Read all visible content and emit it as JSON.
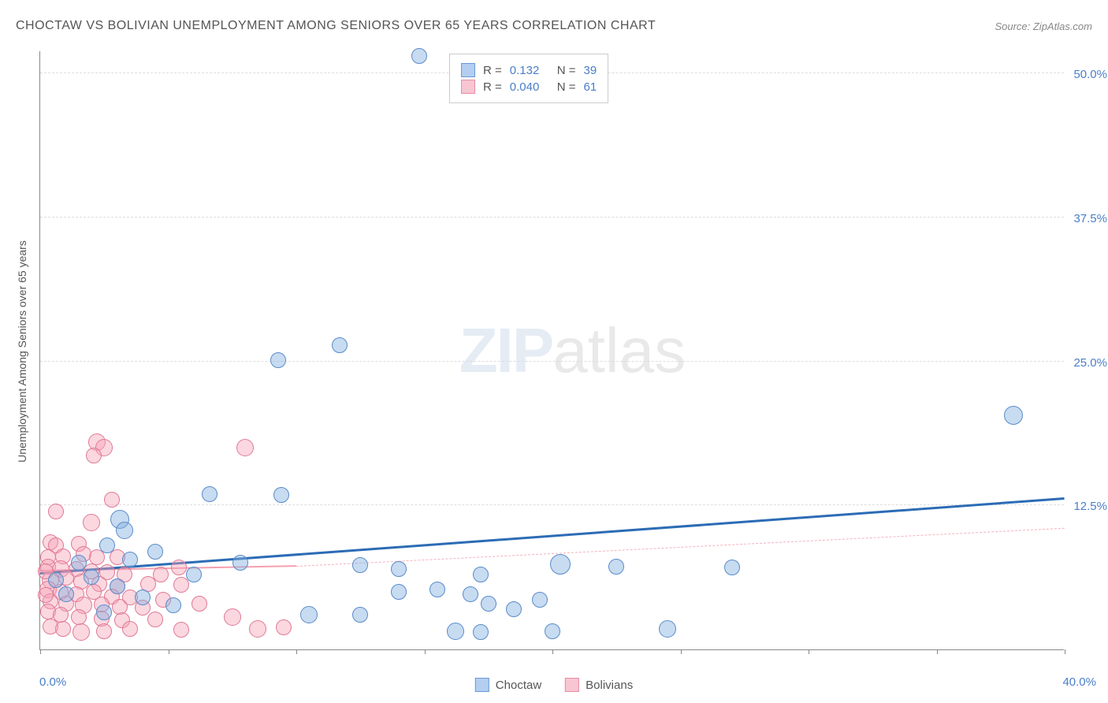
{
  "header": {
    "title": "CHOCTAW VS BOLIVIAN UNEMPLOYMENT AMONG SENIORS OVER 65 YEARS CORRELATION CHART",
    "source_prefix": "Source: ",
    "source": "ZipAtlas.com"
  },
  "watermark": {
    "part1": "ZIP",
    "part2": "atlas"
  },
  "axes": {
    "y_label": "Unemployment Among Seniors over 65 years",
    "x_min": 0.0,
    "x_max": 40.0,
    "y_min": 0.0,
    "y_max": 52.0,
    "x_tick_start": "0.0%",
    "x_tick_end": "40.0%",
    "y_ticks": [
      {
        "v": 12.5,
        "label": "12.5%"
      },
      {
        "v": 25.0,
        "label": "25.0%"
      },
      {
        "v": 37.5,
        "label": "37.5%"
      },
      {
        "v": 50.0,
        "label": "50.0%"
      }
    ],
    "x_tick_positions": [
      0,
      5,
      10,
      15,
      20,
      25,
      30,
      35,
      40
    ],
    "grid_color": "#dddddd",
    "tick_color": "#4a7ec9",
    "axis_line_color": "#888888"
  },
  "legend": {
    "rows": [
      {
        "swatch_fill": "#b3cef0",
        "swatch_border": "#6a9bd8",
        "r_label": "R =",
        "r_val": "0.132",
        "n_label": "N =",
        "n_val": "39"
      },
      {
        "swatch_fill": "#f7c6d2",
        "swatch_border": "#e88ca4",
        "r_label": "R =",
        "r_val": "0.040",
        "n_label": "N =",
        "n_val": "61"
      }
    ],
    "r_color": "#4a7ec9"
  },
  "bottom_legend": {
    "items": [
      {
        "swatch_fill": "#b3cef0",
        "swatch_border": "#6a9bd8",
        "label": "Choctaw"
      },
      {
        "swatch_fill": "#f7c6d2",
        "swatch_border": "#e88ca4",
        "label": "Bolivians"
      }
    ]
  },
  "series": {
    "choctaw": {
      "fill": "rgba(130,175,225,0.45)",
      "stroke": "#5a8cc9",
      "radius_min": 8,
      "radius_max": 14,
      "trend": {
        "x1": 0,
        "y1": 6.5,
        "x2": 40,
        "y2": 13.0,
        "color": "#2c6cb5"
      },
      "points": [
        {
          "x": 14.8,
          "y": 51.5,
          "r": 10
        },
        {
          "x": 38.0,
          "y": 20.3,
          "r": 12
        },
        {
          "x": 11.7,
          "y": 26.4,
          "r": 10
        },
        {
          "x": 9.3,
          "y": 25.1,
          "r": 10
        },
        {
          "x": 6.6,
          "y": 13.5,
          "r": 10
        },
        {
          "x": 9.4,
          "y": 13.4,
          "r": 10
        },
        {
          "x": 3.1,
          "y": 11.3,
          "r": 12
        },
        {
          "x": 3.3,
          "y": 10.3,
          "r": 11
        },
        {
          "x": 2.6,
          "y": 9.0,
          "r": 10
        },
        {
          "x": 3.5,
          "y": 7.8,
          "r": 10
        },
        {
          "x": 1.5,
          "y": 7.5,
          "r": 10
        },
        {
          "x": 7.8,
          "y": 7.5,
          "r": 10
        },
        {
          "x": 20.3,
          "y": 7.4,
          "r": 13
        },
        {
          "x": 12.5,
          "y": 7.3,
          "r": 10
        },
        {
          "x": 14.0,
          "y": 7.0,
          "r": 10
        },
        {
          "x": 22.5,
          "y": 7.2,
          "r": 10
        },
        {
          "x": 27.0,
          "y": 7.1,
          "r": 10
        },
        {
          "x": 17.2,
          "y": 6.5,
          "r": 10
        },
        {
          "x": 2.0,
          "y": 6.3,
          "r": 10
        },
        {
          "x": 3.0,
          "y": 5.5,
          "r": 10
        },
        {
          "x": 14.0,
          "y": 5.0,
          "r": 10
        },
        {
          "x": 15.5,
          "y": 5.2,
          "r": 10
        },
        {
          "x": 16.8,
          "y": 4.8,
          "r": 10
        },
        {
          "x": 17.5,
          "y": 4.0,
          "r": 10
        },
        {
          "x": 10.5,
          "y": 3.0,
          "r": 11
        },
        {
          "x": 12.5,
          "y": 3.0,
          "r": 10
        },
        {
          "x": 2.5,
          "y": 3.2,
          "r": 10
        },
        {
          "x": 4.0,
          "y": 4.5,
          "r": 10
        },
        {
          "x": 1.0,
          "y": 4.8,
          "r": 10
        },
        {
          "x": 5.2,
          "y": 3.8,
          "r": 10
        },
        {
          "x": 16.2,
          "y": 1.6,
          "r": 11
        },
        {
          "x": 17.2,
          "y": 1.5,
          "r": 10
        },
        {
          "x": 20.0,
          "y": 1.6,
          "r": 10
        },
        {
          "x": 24.5,
          "y": 1.8,
          "r": 11
        },
        {
          "x": 18.5,
          "y": 3.5,
          "r": 10
        },
        {
          "x": 19.5,
          "y": 4.3,
          "r": 10
        },
        {
          "x": 6.0,
          "y": 6.5,
          "r": 10
        },
        {
          "x": 4.5,
          "y": 8.5,
          "r": 10
        },
        {
          "x": 0.6,
          "y": 6.0,
          "r": 10
        }
      ]
    },
    "bolivians": {
      "fill": "rgba(245,160,180,0.42)",
      "stroke": "#e07a94",
      "radius_min": 8,
      "radius_max": 14,
      "trend_solid": {
        "x1": 0,
        "y1": 6.8,
        "x2": 10,
        "y2": 7.2,
        "color": "#f5a0b0"
      },
      "trend_dash": {
        "x1": 10,
        "y1": 7.2,
        "x2": 40,
        "y2": 10.5,
        "color": "#f5b0bd"
      },
      "points": [
        {
          "x": 2.2,
          "y": 18.0,
          "r": 11
        },
        {
          "x": 2.5,
          "y": 17.5,
          "r": 11
        },
        {
          "x": 2.1,
          "y": 16.8,
          "r": 10
        },
        {
          "x": 8.0,
          "y": 17.5,
          "r": 11
        },
        {
          "x": 2.8,
          "y": 13.0,
          "r": 10
        },
        {
          "x": 0.6,
          "y": 12.0,
          "r": 10
        },
        {
          "x": 2.0,
          "y": 11.0,
          "r": 11
        },
        {
          "x": 0.4,
          "y": 9.3,
          "r": 10
        },
        {
          "x": 0.6,
          "y": 9.0,
          "r": 10
        },
        {
          "x": 1.5,
          "y": 9.2,
          "r": 10
        },
        {
          "x": 0.3,
          "y": 8.0,
          "r": 10
        },
        {
          "x": 0.9,
          "y": 8.1,
          "r": 10
        },
        {
          "x": 1.7,
          "y": 8.3,
          "r": 10
        },
        {
          "x": 2.2,
          "y": 8.0,
          "r": 10
        },
        {
          "x": 3.0,
          "y": 8.0,
          "r": 10
        },
        {
          "x": 0.3,
          "y": 7.2,
          "r": 10
        },
        {
          "x": 0.8,
          "y": 7.0,
          "r": 11
        },
        {
          "x": 1.4,
          "y": 7.0,
          "r": 10
        },
        {
          "x": 2.0,
          "y": 6.8,
          "r": 10
        },
        {
          "x": 2.6,
          "y": 6.7,
          "r": 10
        },
        {
          "x": 3.3,
          "y": 6.5,
          "r": 10
        },
        {
          "x": 0.4,
          "y": 6.0,
          "r": 11
        },
        {
          "x": 1.0,
          "y": 6.2,
          "r": 10
        },
        {
          "x": 1.6,
          "y": 5.9,
          "r": 10
        },
        {
          "x": 2.3,
          "y": 5.7,
          "r": 10
        },
        {
          "x": 3.0,
          "y": 5.5,
          "r": 10
        },
        {
          "x": 4.2,
          "y": 5.7,
          "r": 10
        },
        {
          "x": 5.5,
          "y": 5.6,
          "r": 10
        },
        {
          "x": 0.3,
          "y": 5.2,
          "r": 11
        },
        {
          "x": 0.8,
          "y": 5.0,
          "r": 10
        },
        {
          "x": 1.4,
          "y": 4.8,
          "r": 10
        },
        {
          "x": 2.1,
          "y": 5.0,
          "r": 10
        },
        {
          "x": 2.8,
          "y": 4.6,
          "r": 10
        },
        {
          "x": 3.5,
          "y": 4.5,
          "r": 10
        },
        {
          "x": 0.4,
          "y": 4.2,
          "r": 10
        },
        {
          "x": 1.0,
          "y": 4.0,
          "r": 10
        },
        {
          "x": 1.7,
          "y": 3.8,
          "r": 11
        },
        {
          "x": 2.4,
          "y": 3.9,
          "r": 10
        },
        {
          "x": 3.1,
          "y": 3.7,
          "r": 10
        },
        {
          "x": 4.0,
          "y": 3.6,
          "r": 10
        },
        {
          "x": 4.8,
          "y": 4.3,
          "r": 10
        },
        {
          "x": 0.3,
          "y": 3.3,
          "r": 10
        },
        {
          "x": 0.8,
          "y": 3.0,
          "r": 10
        },
        {
          "x": 1.5,
          "y": 2.8,
          "r": 10
        },
        {
          "x": 2.4,
          "y": 2.7,
          "r": 10
        },
        {
          "x": 3.2,
          "y": 2.5,
          "r": 10
        },
        {
          "x": 4.5,
          "y": 2.6,
          "r": 10
        },
        {
          "x": 0.4,
          "y": 2.0,
          "r": 10
        },
        {
          "x": 0.9,
          "y": 1.8,
          "r": 10
        },
        {
          "x": 1.6,
          "y": 1.5,
          "r": 11
        },
        {
          "x": 2.5,
          "y": 1.6,
          "r": 10
        },
        {
          "x": 3.5,
          "y": 1.8,
          "r": 10
        },
        {
          "x": 5.5,
          "y": 1.7,
          "r": 10
        },
        {
          "x": 7.5,
          "y": 2.8,
          "r": 11
        },
        {
          "x": 8.5,
          "y": 1.8,
          "r": 11
        },
        {
          "x": 9.5,
          "y": 1.9,
          "r": 10
        },
        {
          "x": 6.2,
          "y": 4.0,
          "r": 10
        },
        {
          "x": 0.2,
          "y": 6.8,
          "r": 10
        },
        {
          "x": 0.2,
          "y": 4.7,
          "r": 10
        },
        {
          "x": 4.7,
          "y": 6.5,
          "r": 10
        },
        {
          "x": 5.4,
          "y": 7.1,
          "r": 10
        }
      ]
    }
  }
}
